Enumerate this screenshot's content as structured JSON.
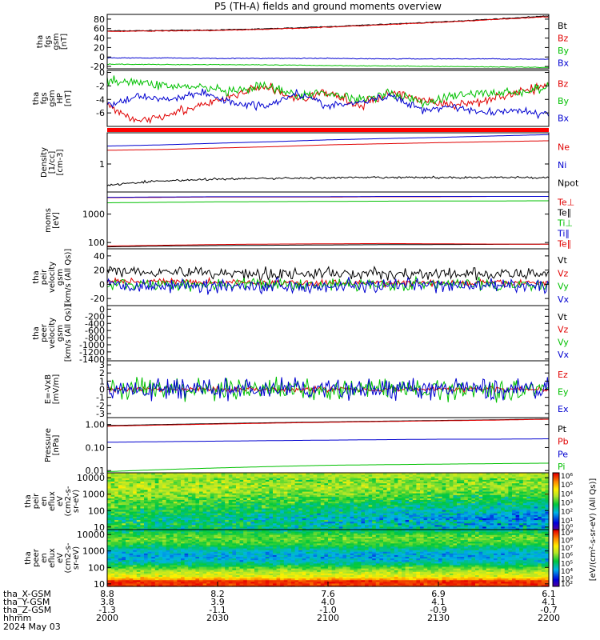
{
  "title": "P5 (TH-A) fields and ground moments overview",
  "chart_data": [
    {
      "id": "fgs",
      "type": "line",
      "ylabel": [
        "tha",
        "fgs",
        "gsm",
        "[nT]"
      ],
      "ylim": [
        -25,
        90
      ],
      "yticks": [
        {
          "v": -20,
          "t": "-20"
        },
        {
          "v": 0,
          "t": "0"
        },
        {
          "v": 20,
          "t": "20"
        },
        {
          "v": 40,
          "t": "40"
        },
        {
          "v": 60,
          "t": "60"
        },
        {
          "v": 80,
          "t": "80"
        }
      ],
      "series": [
        {
          "name": "Bt",
          "color": "#000000",
          "y": [
            55,
            56,
            57,
            60,
            64,
            69,
            74,
            80,
            87
          ],
          "noise": 0.6
        },
        {
          "name": "Bz",
          "color": "#e00000",
          "y": [
            54,
            55,
            56,
            59,
            63,
            68,
            73,
            79,
            85
          ],
          "noise": 0.6
        },
        {
          "name": "By",
          "color": "#00c000",
          "y": [
            -15,
            -16,
            -16,
            -17,
            -18,
            -19,
            -20,
            -21,
            -22
          ],
          "noise": 0.5
        },
        {
          "name": "Bx",
          "color": "#0000d0",
          "y": [
            -2,
            -2,
            -3,
            -3,
            -3,
            -4,
            -4,
            -4,
            -5
          ],
          "noise": 0.6
        }
      ]
    },
    {
      "id": "fgs_hp",
      "type": "line",
      "ylabel": [
        "tha",
        "fgs",
        "gsm",
        "HP",
        "[nT]"
      ],
      "ylim": [
        -8,
        0.3
      ],
      "yticks": [
        {
          "v": -6,
          "t": "-6"
        },
        {
          "v": -4,
          "t": "-4"
        },
        {
          "v": -2,
          "t": "-2"
        },
        {
          "v": 0,
          "t": "0"
        }
      ],
      "series": [
        {
          "name": "Bz",
          "color": "#e00000",
          "y": [
            -5,
            -7.2,
            -6,
            -5,
            -3.5,
            -2,
            -4,
            -3,
            -5,
            -3,
            -4,
            -5,
            -4,
            -3,
            -2
          ],
          "noise": 0.5
        },
        {
          "name": "By",
          "color": "#00c000",
          "y": [
            -1,
            -1.5,
            -2,
            -2.2,
            -3,
            -2,
            -3.5,
            -3,
            -4,
            -3,
            -4.5,
            -3.5,
            -3,
            -3,
            -2.2
          ],
          "noise": 0.5
        },
        {
          "name": "Bx",
          "color": "#0000d0",
          "y": [
            -5,
            -3.5,
            -4,
            -3,
            -4.5,
            -5,
            -3,
            -5,
            -4.5,
            -3.5,
            -5.5,
            -5,
            -6,
            -5.5,
            -6.5
          ],
          "noise": 0.4
        }
      ]
    },
    {
      "id": "density",
      "type": "line",
      "ylabel": [
        "Density",
        "[1/cc]",
        "[cm-3]"
      ],
      "log": true,
      "ylim": [
        0.2,
        6
      ],
      "yticks": [
        {
          "v": 1,
          "t": "1"
        }
      ],
      "series": [
        {
          "name": "Ne",
          "color": "#e00000",
          "y": [
            2.2,
            2.3,
            2.5,
            2.7,
            3.0,
            3.2,
            3.4,
            3.6,
            3.8
          ]
        },
        {
          "name": "Ni",
          "color": "#0000d0",
          "y": [
            2.8,
            3.0,
            3.3,
            3.6,
            4.0,
            4.3,
            4.6,
            5.0,
            5.4
          ]
        },
        {
          "name": "Npot",
          "color": "#000000",
          "y": [
            0.3,
            0.38,
            0.42,
            0.44,
            0.45,
            0.46,
            0.46,
            0.46,
            0.46
          ],
          "noise": 0.02
        }
      ]
    },
    {
      "id": "moms",
      "type": "line",
      "ylabel": [
        "moms",
        "[eV]"
      ],
      "log": true,
      "ylim": [
        60,
        6000
      ],
      "yticks": [
        {
          "v": 100,
          "t": "100"
        },
        {
          "v": 1000,
          "t": "1000"
        }
      ],
      "series": [
        {
          "name": "Te⊥",
          "color": "#e00000",
          "y": [
            3800,
            3900,
            4000,
            4000,
            4000,
            4100,
            4100,
            4200,
            4200
          ]
        },
        {
          "name": "Te∥",
          "color": "#000000",
          "y": [
            70,
            75,
            78,
            80,
            82,
            84,
            85,
            86,
            88
          ]
        },
        {
          "name": "Ti⊥",
          "color": "#00c000",
          "y": [
            2500,
            2600,
            2700,
            2750,
            2800,
            2850,
            2900,
            2900,
            2950
          ]
        },
        {
          "name": "Ti∥",
          "color": "#0000d0",
          "y": [
            3900,
            4000,
            4100,
            4100,
            4100,
            4200,
            4200,
            4200,
            4200
          ]
        },
        {
          "name": "Te∥",
          "color": "#e00000",
          "y": [
            75,
            80,
            85,
            88,
            90,
            92,
            90,
            88,
            87
          ]
        }
      ]
    },
    {
      "id": "velocity",
      "type": "line",
      "ylabel": [
        "tha",
        "peir",
        "velocity",
        "gsm",
        "[km/s (All Qs)]"
      ],
      "ylim": [
        -30,
        50
      ],
      "yticks": [
        {
          "v": -20,
          "t": "-20"
        },
        {
          "v": 0,
          "t": "0"
        },
        {
          "v": 20,
          "t": "20"
        },
        {
          "v": 40,
          "t": "40"
        }
      ],
      "series": [
        {
          "name": "Vt",
          "color": "#000000",
          "y": [
            20,
            18,
            16,
            15,
            15,
            15,
            14,
            14,
            14
          ],
          "noise": 6
        },
        {
          "name": "Vz",
          "color": "#e00000",
          "y": [
            5,
            4,
            3,
            2,
            2,
            2,
            2,
            2,
            2
          ],
          "noise": 3
        },
        {
          "name": "Vy",
          "color": "#00c000",
          "y": [
            0,
            0,
            0,
            0,
            0,
            0,
            0,
            0,
            0
          ],
          "noise": 6
        },
        {
          "name": "Vx",
          "color": "#0000d0",
          "y": [
            0,
            -2,
            -2,
            -2,
            -2,
            -2,
            -2,
            -2,
            -2
          ],
          "noise": 7
        }
      ]
    },
    {
      "id": "velocity_peer",
      "type": "line",
      "ylabel": [
        "tha",
        "peer",
        "velocity",
        "gsm",
        "[km/s (All Qs)]"
      ],
      "ylim": [
        -1450,
        100
      ],
      "yticks": [
        {
          "v": -1400,
          "t": "-1400"
        },
        {
          "v": -1200,
          "t": "-1200"
        },
        {
          "v": -1000,
          "t": "-1000"
        },
        {
          "v": -800,
          "t": "-800"
        },
        {
          "v": -600,
          "t": "-600"
        },
        {
          "v": -400,
          "t": "-400"
        },
        {
          "v": -200,
          "t": "-200"
        },
        {
          "v": 0,
          "t": "0"
        }
      ],
      "series": [
        {
          "name": "Vt",
          "color": "#000000",
          "y": []
        },
        {
          "name": "Vz",
          "color": "#e00000",
          "y": []
        },
        {
          "name": "Vy",
          "color": "#00c000",
          "y": []
        },
        {
          "name": "Vx",
          "color": "#0000d0",
          "y": []
        }
      ]
    },
    {
      "id": "efield",
      "type": "line",
      "ylabel": [
        "E=-VxB",
        "[mV/m]"
      ],
      "ylim": [
        -3.5,
        3.5
      ],
      "yticks": [
        {
          "v": -3,
          "t": "-3"
        },
        {
          "v": -2,
          "t": "-2"
        },
        {
          "v": -1,
          "t": "-1"
        },
        {
          "v": 0,
          "t": "0"
        },
        {
          "v": 1,
          "t": "1"
        },
        {
          "v": 2,
          "t": "2"
        },
        {
          "v": 3,
          "t": "3"
        }
      ],
      "series": [
        {
          "name": "Ez",
          "color": "#e00000",
          "y": [
            0,
            0,
            0,
            0,
            0,
            0,
            0,
            0,
            0
          ],
          "noise": 0.25
        },
        {
          "name": "Ey",
          "color": "#00c000",
          "y": [
            0,
            0,
            0,
            0,
            0,
            0,
            0,
            0,
            0
          ],
          "noise": 0.9
        },
        {
          "name": "Ex",
          "color": "#0000d0",
          "y": [
            0,
            0,
            0,
            0,
            0,
            0,
            0,
            0,
            0
          ],
          "noise": 0.9
        }
      ]
    },
    {
      "id": "pressure",
      "type": "line",
      "ylabel": [
        "Pressure",
        "[nPa]"
      ],
      "log": true,
      "ylim": [
        0.008,
        2
      ],
      "yticks": [
        {
          "v": 0.01,
          "t": "0.01"
        },
        {
          "v": 0.1,
          "t": "0.10"
        },
        {
          "v": 1,
          "t": "1.00"
        }
      ],
      "series": [
        {
          "name": "Pt",
          "color": "#000000",
          "y": [
            0.9,
            1.0,
            1.1,
            1.2,
            1.3,
            1.4,
            1.5,
            1.6,
            1.75
          ]
        },
        {
          "name": "Pb",
          "color": "#e00000",
          "y": [
            0.85,
            0.95,
            1.05,
            1.15,
            1.25,
            1.35,
            1.45,
            1.55,
            1.7
          ]
        },
        {
          "name": "Pe",
          "color": "#0000d0",
          "y": [
            0.17,
            0.18,
            0.19,
            0.2,
            0.21,
            0.22,
            0.23,
            0.23,
            0.24
          ]
        },
        {
          "name": "Pi",
          "color": "#00c000",
          "y": [
            0.009,
            0.011,
            0.013,
            0.015,
            0.017,
            0.018,
            0.019,
            0.02,
            0.021
          ]
        }
      ]
    },
    {
      "id": "peir_en",
      "type": "heatmap",
      "ylabel": [
        "tha",
        "peir",
        "en",
        "eflux",
        "eV",
        "(cm2-s-",
        "sr-eV)"
      ],
      "log": true,
      "ylim": [
        7,
        20000
      ],
      "yticks": [
        {
          "v": 10,
          "t": "10"
        },
        {
          "v": 100,
          "t": "100"
        },
        {
          "v": 1000,
          "t": "1000"
        },
        {
          "v": 10000,
          "t": "10000"
        }
      ]
    },
    {
      "id": "peer_en",
      "type": "heatmap",
      "ylabel": [
        "tha",
        "peer",
        "en",
        "eflux",
        "eV",
        "(cm2-s-",
        "sr-eV)"
      ],
      "log": true,
      "ylim": [
        7,
        20000
      ],
      "yticks": [
        {
          "v": 10,
          "t": "10"
        },
        {
          "v": 100,
          "t": "100"
        },
        {
          "v": 1000,
          "t": "1000"
        },
        {
          "v": 10000,
          "t": "10000"
        }
      ]
    }
  ],
  "colorbars": [
    {
      "labels": [
        "10⁶",
        "10⁵",
        "10⁴",
        "10³",
        "10²",
        "10¹",
        "10⁰"
      ]
    },
    {
      "labels": [
        "10⁹",
        "10⁸",
        "10⁷",
        "10⁶",
        "10⁵",
        "10⁴",
        "10³",
        "10²"
      ]
    }
  ],
  "colorbar_unit": "[eV/(cm²-s-sr-eV) (All Qs)]",
  "footer": {
    "rows": [
      {
        "label": "tha_X-GSM",
        "values": [
          "8.8",
          "8.2",
          "7.6",
          "6.9",
          "6.1"
        ]
      },
      {
        "label": "tha_Y-GSM",
        "values": [
          "3.8",
          "3.9",
          "4.0",
          "4.1",
          "4.1"
        ]
      },
      {
        "label": "tha_Z-GSM",
        "values": [
          "-1.3",
          "-1.1",
          "-1.0",
          "-0.9",
          "-0.7"
        ]
      },
      {
        "label": "hhmm",
        "values": [
          "2000",
          "2030",
          "2100",
          "2130",
          "2200"
        ]
      }
    ],
    "date": "2024 May 03"
  }
}
